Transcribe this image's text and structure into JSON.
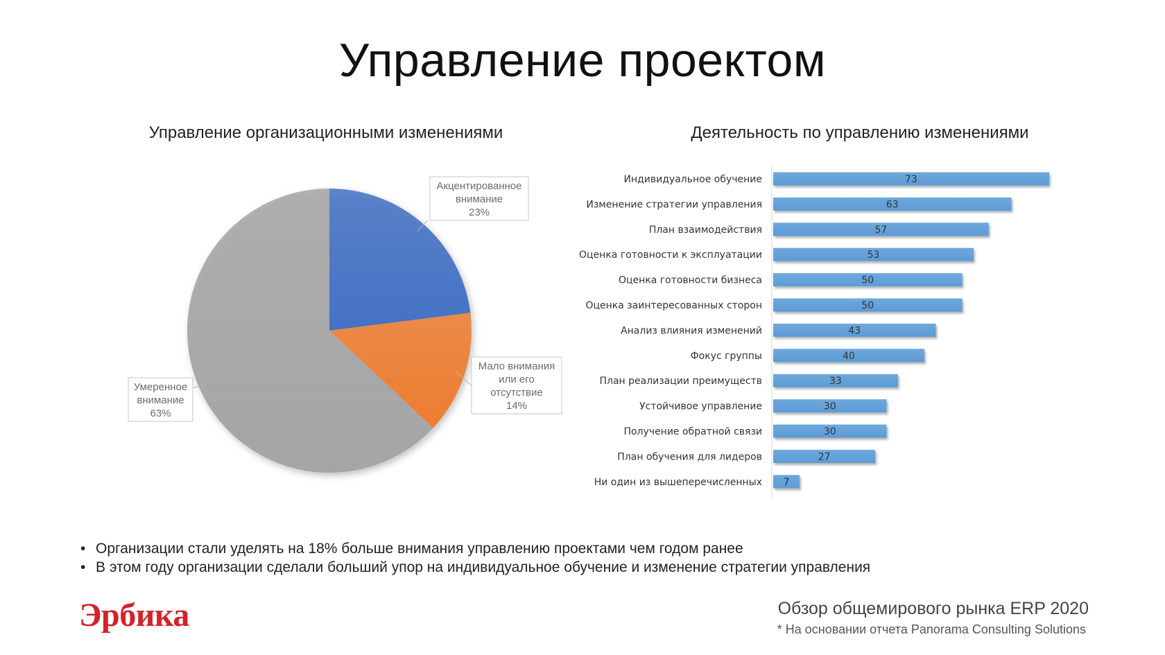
{
  "slide": {
    "title": "Управление проектом",
    "bullets": [
      "Организации стали уделять на 18% больше внимания управлению проектами чем годом ранее",
      "В этом году организации сделали больший упор на индивидуальное обучение и изменение стратегии управления"
    ]
  },
  "footer": {
    "logo_text": "Эрбика",
    "report_title": "Обзор общемирового рынка ERP 2020",
    "source_note": "* На основании отчета Panorama Consulting Solutions"
  },
  "chart_data": [
    {
      "type": "pie",
      "title": "Управление организационными изменениями",
      "slices": [
        {
          "label_lines": [
            "Акцентированное",
            "внимание",
            "23%"
          ],
          "value": 23,
          "color": "#4472c4"
        },
        {
          "label_lines": [
            "Мало внимания",
            "или его",
            "отсутствие",
            "14%"
          ],
          "value": 14,
          "color": "#ed7d31"
        },
        {
          "label_lines": [
            "Умеренное",
            "внимание",
            "63%"
          ],
          "value": 63,
          "color": "#a5a5a5"
        }
      ],
      "start_angle_deg": 0,
      "direction": "clockwise",
      "legend": "none"
    },
    {
      "type": "bar",
      "orientation": "horizontal",
      "title": "Деятельность по управлению изменениями",
      "categories": [
        "Индивидуальное обучение",
        "Изменение стратегии управления",
        "План взаимодействия",
        "Оценка готовности к эксплуатации",
        "Оценка готовности бизнеса",
        "Оценка заинтересованных сторон",
        "Анализ влияния изменений",
        "Фокус группы",
        "План реализации преимуществ",
        "Устойчивое управление",
        "Получение обратной связи",
        "План обучения для лидеров",
        "Ни один из вышеперечисленных"
      ],
      "values": [
        73,
        63,
        57,
        53,
        50,
        50,
        43,
        40,
        33,
        30,
        30,
        27,
        7
      ],
      "xlim": [
        0,
        73
      ],
      "color": "#5b9bd5",
      "data_labels": true,
      "grid": false,
      "legend": "none"
    }
  ]
}
